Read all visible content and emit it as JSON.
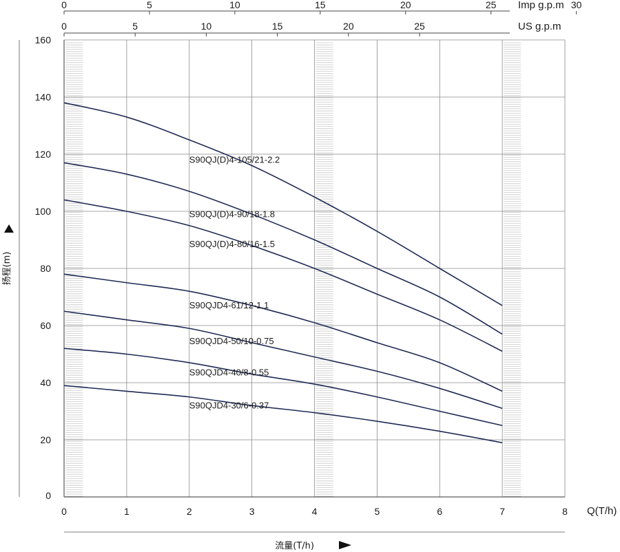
{
  "chart_data": {
    "type": "line",
    "title": "",
    "xlabel": "流量(T/h)",
    "xunit": "Q(T/h)",
    "ylabel": "扬程(m)",
    "xlim": [
      0,
      8
    ],
    "ylim": [
      0,
      160
    ],
    "x_ticks": [
      "0",
      "1",
      "2",
      "3",
      "4",
      "5",
      "6",
      "7",
      "8"
    ],
    "y_ticks": [
      "0",
      "20",
      "40",
      "60",
      "80",
      "100",
      "120",
      "140",
      "160"
    ],
    "grid": true,
    "secondary_axes": [
      {
        "unit": "Imp g.p.m",
        "ticks": [
          "0",
          "5",
          "10",
          "15",
          "20",
          "25",
          "30"
        ],
        "values": [
          0,
          5,
          10,
          15,
          20,
          25,
          30
        ],
        "max_at_x": 8,
        "max_value": 29.33
      },
      {
        "unit": "US g.p.m",
        "ticks": [
          "0",
          "5",
          "10",
          "15",
          "20",
          "25"
        ],
        "values": [
          0,
          5,
          10,
          15,
          20,
          25
        ],
        "max_at_x": 8,
        "max_value": 35.22
      }
    ],
    "shaded_bands": [
      [
        0,
        0.3
      ],
      [
        4,
        4.3
      ],
      [
        7,
        7.3
      ]
    ],
    "series": [
      {
        "name": "S90QJ(D)4-105/21-2.2",
        "x": [
          0,
          1,
          2,
          3,
          4,
          5,
          6,
          7
        ],
        "y": [
          138,
          133,
          125,
          116,
          105,
          93,
          80,
          67
        ],
        "label_at": [
          2.0,
          117
        ]
      },
      {
        "name": "S90QJ(D)4-90/18-1.8",
        "x": [
          0,
          1,
          2,
          3,
          4,
          5,
          6,
          7
        ],
        "y": [
          117,
          113,
          107,
          99,
          90,
          80,
          70,
          57
        ],
        "label_at": [
          2.0,
          98
        ]
      },
      {
        "name": "S90QJ(D)4-80/16-1.5",
        "x": [
          0,
          1,
          2,
          3,
          4,
          5,
          6,
          7
        ],
        "y": [
          104,
          100,
          95,
          88,
          80,
          71,
          62,
          51
        ],
        "label_at": [
          2.0,
          87.5
        ]
      },
      {
        "name": "S90QJD4-61/12-1.1",
        "x": [
          0,
          1,
          2,
          3,
          4,
          5,
          6,
          7
        ],
        "y": [
          78,
          75,
          72,
          67,
          61,
          54,
          47,
          37
        ],
        "label_at": [
          2.0,
          66
        ]
      },
      {
        "name": "S90QJD4-50/10-0.75",
        "x": [
          0,
          1,
          2,
          3,
          4,
          5,
          6,
          7
        ],
        "y": [
          65,
          62,
          59,
          54,
          49,
          44,
          38,
          31
        ],
        "label_at": [
          2.0,
          53.5
        ]
      },
      {
        "name": "S90QJD4-40/8-0.55",
        "x": [
          0,
          1,
          2,
          3,
          4,
          5,
          6,
          7
        ],
        "y": [
          52,
          50,
          47,
          43,
          39.5,
          35,
          30,
          25
        ],
        "label_at": [
          2.0,
          42.5
        ]
      },
      {
        "name": "S90QJD4-30/6-0.37",
        "x": [
          0,
          1,
          2,
          3,
          4,
          5,
          6,
          7
        ],
        "y": [
          39,
          37,
          35,
          32,
          29.5,
          26.5,
          23,
          19
        ],
        "label_at": [
          2.0,
          31
        ]
      }
    ],
    "colors": {
      "curve": "#1f2a55",
      "grid": "#8a8a8a",
      "axis": "#333333",
      "band": "#c8c8c8"
    }
  }
}
